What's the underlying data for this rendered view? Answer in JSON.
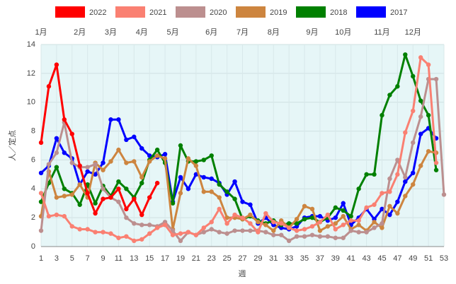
{
  "chart_data": {
    "type": "line",
    "ylabel": "人／定点",
    "xlabel": "週",
    "x": [
      1,
      2,
      3,
      4,
      5,
      6,
      7,
      8,
      9,
      10,
      11,
      12,
      13,
      14,
      15,
      16,
      17,
      18,
      19,
      20,
      21,
      22,
      23,
      24,
      25,
      26,
      27,
      28,
      29,
      30,
      31,
      32,
      33,
      34,
      35,
      36,
      37,
      38,
      39,
      40,
      41,
      42,
      43,
      44,
      45,
      46,
      47,
      48,
      49,
      50,
      51,
      52,
      53
    ],
    "xlim": [
      1,
      53
    ],
    "ylim": [
      0,
      14
    ],
    "xticks": [
      1,
      3,
      5,
      7,
      9,
      11,
      13,
      15,
      17,
      19,
      21,
      23,
      25,
      27,
      29,
      31,
      33,
      35,
      37,
      39,
      41,
      43,
      45,
      47,
      49,
      51,
      53
    ],
    "yticks": [
      0,
      2,
      4,
      6,
      8,
      10,
      12,
      14
    ],
    "grid": true,
    "month_labels": [
      {
        "label": "1月",
        "week": 1
      },
      {
        "label": "2月",
        "week": 6
      },
      {
        "label": "3月",
        "week": 10
      },
      {
        "label": "4月",
        "week": 14
      },
      {
        "label": "5月",
        "week": 18
      },
      {
        "label": "6月",
        "week": 23
      },
      {
        "label": "7月",
        "week": 27
      },
      {
        "label": "8月",
        "week": 31
      },
      {
        "label": "9月",
        "week": 36
      },
      {
        "label": "10月",
        "week": 40
      },
      {
        "label": "11月",
        "week": 45
      },
      {
        "label": "12月",
        "week": 49
      }
    ],
    "series": [
      {
        "name": "2022",
        "color": "#ff0000",
        "values": [
          7.2,
          11.1,
          12.6,
          8.8,
          7.8,
          5.6,
          3.7,
          2.3,
          3.3,
          3.4,
          4.0,
          2.6,
          3.3,
          2.2,
          3.4,
          4.4,
          null,
          null,
          null,
          null,
          null,
          null,
          null,
          null,
          null,
          null,
          null,
          null,
          null,
          null,
          null,
          null,
          null,
          null,
          null,
          null,
          null,
          null,
          null,
          null,
          null,
          null,
          null,
          null,
          null,
          null,
          null,
          null,
          null,
          null,
          null,
          null,
          null
        ]
      },
      {
        "name": "2021",
        "color": "#fa8072",
        "values": [
          3.7,
          2.1,
          2.2,
          2.1,
          1.4,
          1.2,
          1.2,
          1.0,
          1.0,
          0.9,
          0.6,
          0.7,
          0.4,
          0.5,
          0.9,
          1.3,
          1.5,
          0.8,
          0.9,
          1.0,
          0.8,
          1.3,
          1.7,
          2.6,
          1.6,
          2.2,
          2.0,
          1.6,
          1.0,
          2.3,
          1.7,
          1.6,
          1.3,
          1.1,
          1.2,
          1.4,
          1.7,
          2.2,
          1.2,
          1.5,
          1.8,
          1.8,
          2.7,
          2.9,
          3.7,
          3.8,
          5.0,
          7.9,
          9.4,
          13.1,
          12.6,
          5.8,
          null
        ]
      },
      {
        "name": "2020",
        "color": "#bc8f8f",
        "values": [
          1.1,
          5.7,
          6.5,
          8.6,
          5.8,
          5.5,
          5.5,
          5.7,
          4.0,
          3.4,
          3.1,
          2.0,
          1.6,
          1.5,
          1.5,
          1.4,
          1.7,
          1.1,
          0.4,
          1.0,
          0.8,
          1.0,
          1.2,
          1.0,
          0.9,
          1.1,
          1.1,
          1.1,
          1.1,
          1.0,
          0.8,
          0.8,
          0.4,
          0.7,
          0.7,
          0.8,
          0.7,
          0.7,
          0.6,
          0.6,
          1.1,
          1.0,
          1.0,
          1.3,
          1.6,
          4.7,
          6.0,
          4.8,
          7.2,
          9.0,
          11.6,
          11.6,
          3.6
        ]
      },
      {
        "name": "2019",
        "color": "#cd853f",
        "values": [
          2.1,
          5.2,
          3.4,
          3.5,
          3.6,
          4.3,
          3.4,
          5.8,
          5.3,
          5.9,
          6.7,
          5.8,
          5.9,
          4.8,
          5.9,
          6.3,
          6.1,
          1.2,
          3.7,
          6.1,
          5.6,
          3.8,
          3.8,
          3.4,
          2.0,
          2.0,
          1.9,
          2.2,
          1.7,
          1.5,
          1.1,
          1.8,
          1.3,
          1.9,
          2.8,
          2.6,
          1.1,
          1.4,
          1.6,
          2.1,
          1.2,
          1.5,
          1.1,
          1.7,
          1.3,
          2.8,
          2.3,
          3.5,
          4.3,
          5.6,
          6.6,
          6.5,
          null
        ]
      },
      {
        "name": "2018",
        "color": "#008000",
        "values": [
          3.1,
          4.4,
          5.5,
          4.0,
          3.7,
          2.9,
          4.3,
          3.0,
          4.2,
          3.5,
          4.5,
          4.0,
          3.4,
          4.4,
          6.0,
          6.7,
          5.8,
          3.0,
          7.0,
          5.9,
          5.9,
          6.0,
          6.3,
          4.3,
          3.8,
          3.3,
          1.9,
          2.1,
          1.8,
          1.6,
          1.8,
          1.5,
          1.6,
          1.6,
          1.9,
          2.0,
          1.7,
          2.0,
          2.7,
          2.5,
          2.1,
          4.0,
          5.0,
          5.0,
          9.1,
          10.5,
          11.1,
          13.3,
          11.8,
          10.1,
          9.1,
          5.3,
          null
        ]
      },
      {
        "name": "2017",
        "color": "#0000ff",
        "values": [
          5.1,
          5.6,
          7.5,
          6.5,
          6.1,
          4.3,
          5.2,
          5.0,
          5.8,
          8.8,
          8.8,
          7.4,
          7.6,
          6.8,
          6.3,
          6.2,
          6.4,
          3.1,
          4.8,
          4.0,
          5.0,
          4.8,
          4.7,
          4.4,
          3.6,
          4.5,
          3.1,
          2.9,
          1.6,
          2.0,
          1.5,
          1.3,
          1.2,
          1.4,
          2.0,
          2.1,
          2.1,
          1.8,
          2.0,
          3.0,
          1.5,
          2.0,
          2.6,
          1.9,
          2.6,
          2.2,
          3.1,
          4.5,
          5.1,
          7.8,
          8.2,
          7.5,
          null
        ]
      }
    ]
  }
}
